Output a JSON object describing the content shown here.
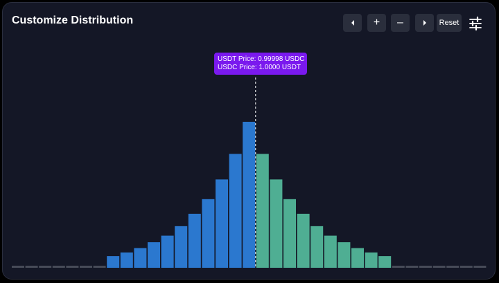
{
  "header": {
    "title": "Customize Distribution",
    "reset_label": "Reset",
    "plus_label": "+",
    "minus_label": "–"
  },
  "tooltip": {
    "line1": "USDT Price:  0.99998 USDC",
    "line2": "USDC Price:  1.0000 USDT"
  },
  "colors": {
    "left_bar": "#2b78cf",
    "right_bar": "#4fae93",
    "inactive_bar": "#474b58",
    "tooltip": "#7a19ee"
  },
  "chart_data": {
    "type": "bar",
    "bins_left_inactive": 7,
    "left_values": [
      8,
      10.5,
      13.5,
      17.5,
      22,
      28.5,
      37,
      47,
      60.5,
      78,
      100
    ],
    "right_values": [
      78,
      60.5,
      47,
      37,
      28.5,
      22,
      17.5,
      13.5,
      10.5,
      8
    ],
    "bins_right_inactive": 7
  }
}
